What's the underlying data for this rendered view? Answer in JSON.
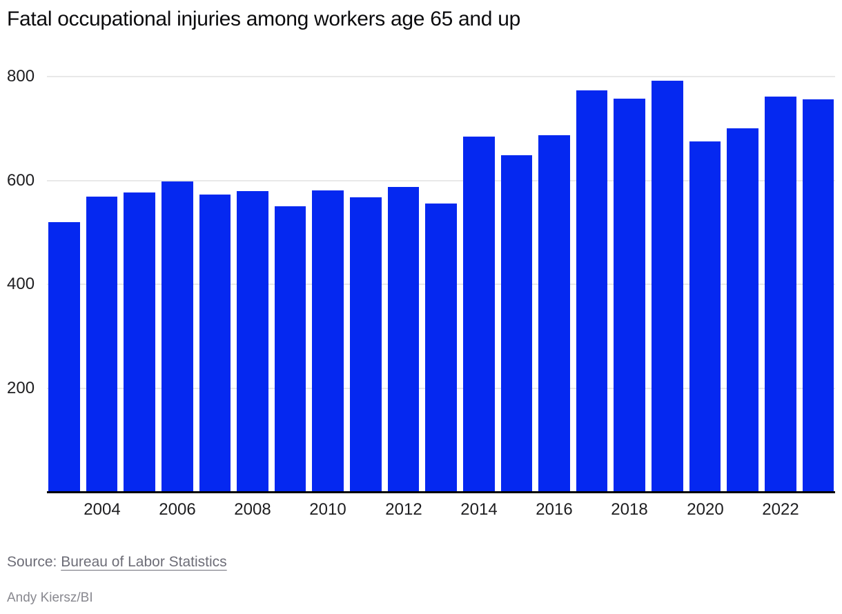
{
  "chart_data": {
    "type": "bar",
    "title": "Fatal occupational injuries among workers age 65 and up",
    "categories": [
      2003,
      2004,
      2005,
      2006,
      2007,
      2008,
      2009,
      2010,
      2011,
      2012,
      2013,
      2014,
      2015,
      2016,
      2017,
      2018,
      2019,
      2020,
      2021,
      2022,
      2023
    ],
    "values": [
      520,
      569,
      577,
      598,
      573,
      580,
      550,
      581,
      568,
      588,
      556,
      684,
      649,
      687,
      773,
      758,
      792,
      675,
      700,
      761,
      756
    ],
    "xlabel": "",
    "ylabel": "",
    "ylim": [
      0,
      800
    ],
    "yticks": [
      200,
      400,
      600,
      800
    ],
    "xtick_labels": [
      "2004",
      "2006",
      "2008",
      "2010",
      "2012",
      "2014",
      "2016",
      "2018",
      "2020",
      "2022"
    ],
    "grid": "horizontal",
    "legend_position": "none",
    "bar_color": "#0528f0",
    "gridline_color": "#e8e8e8",
    "axis_line_color": "#000000",
    "tick_label_color": "#1e1e20"
  },
  "footer": {
    "source_label": "Source:",
    "source_link": "Bureau of Labor Statistics",
    "byline": "Andy Kiersz/BI"
  }
}
